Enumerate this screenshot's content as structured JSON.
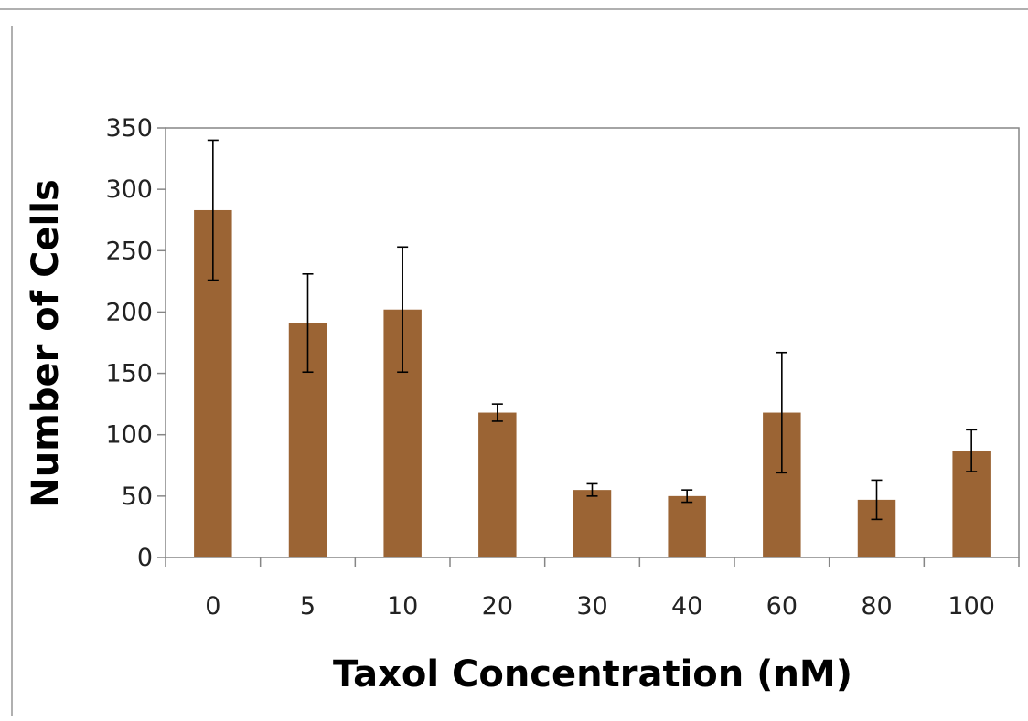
{
  "chart_data": {
    "type": "bar",
    "title": "",
    "xlabel": "Taxol Concentration (nM)",
    "ylabel": "Number of Cells",
    "categories": [
      "0",
      "5",
      "10",
      "20",
      "30",
      "40",
      "60",
      "80",
      "100"
    ],
    "series": [
      {
        "values": [
          283,
          191,
          202,
          118,
          55,
          50,
          118,
          47,
          87
        ],
        "error": [
          57,
          40,
          51,
          7,
          5,
          5,
          49,
          16,
          17
        ]
      }
    ],
    "ylim": [
      0,
      350
    ],
    "yticks": [
      0,
      50,
      100,
      150,
      200,
      250,
      300,
      350
    ],
    "grid": false,
    "legend": "none",
    "colors": {
      "bar": "#9b6434",
      "error_bar": "#000000",
      "axis": "#868686",
      "plot_border": "#868686"
    }
  }
}
